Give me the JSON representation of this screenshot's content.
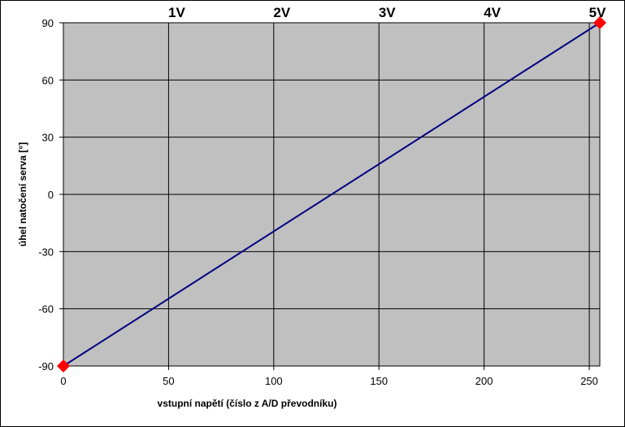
{
  "chart_data": {
    "type": "line",
    "xlabel": "vstupní napětí (číslo z A/D převodníku)",
    "ylabel": "úhel natočení serva [°]",
    "xlim": [
      0,
      255
    ],
    "ylim": [
      -90,
      90
    ],
    "x_ticks": [
      0,
      50,
      100,
      150,
      200,
      250
    ],
    "y_ticks": [
      -90,
      -60,
      -30,
      0,
      30,
      60,
      90
    ],
    "grid": true,
    "top_axis": {
      "ticks": [
        {
          "x": 50,
          "label": "1V"
        },
        {
          "x": 100,
          "label": "2V"
        },
        {
          "x": 150,
          "label": "3V"
        },
        {
          "x": 200,
          "label": "4V"
        },
        {
          "x": 250,
          "label": "5V"
        }
      ]
    },
    "series": [
      {
        "line_color": "#000080",
        "marker_color": "#ff0000",
        "points": [
          {
            "x": 0,
            "y": -90
          },
          {
            "x": 255,
            "y": 90
          }
        ]
      }
    ],
    "colors": {
      "plot_background": "#c0c0c0",
      "grid": "#000000",
      "chart_background": "#ffffff"
    }
  }
}
